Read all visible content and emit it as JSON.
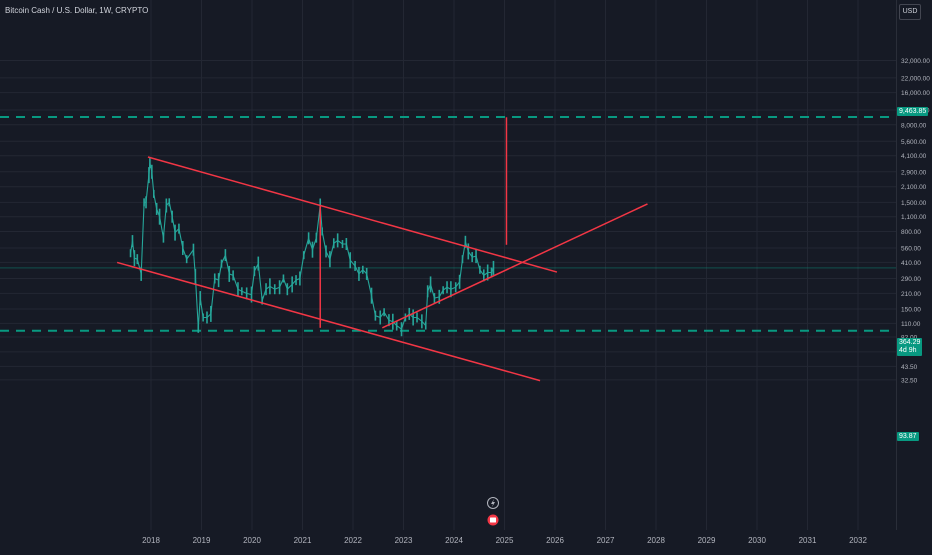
{
  "header": {
    "symbol_title": "Bitcoin Cash / U.S. Dollar, 1W, CRYPTO",
    "currency_badge": "USD"
  },
  "price_axis": {
    "scale": "log",
    "tick_labels": [
      "32,000.00",
      "22,000.00",
      "16,000.00",
      "11,000.00",
      "8,000.00",
      "5,600.00",
      "4,100.00",
      "2,900.00",
      "2,100.00",
      "1,500.00",
      "1,100.00",
      "800.00",
      "560.00",
      "410.00",
      "290.00",
      "210.00",
      "150.00",
      "110.00",
      "82.00",
      "59.50",
      "43.50",
      "32.50"
    ],
    "tick_values": [
      32000,
      22000,
      16000,
      11000,
      8000,
      5600,
      4100,
      2900,
      2100,
      1500,
      1100,
      800,
      560,
      410,
      290,
      210,
      150,
      110,
      82,
      59.5,
      43.5,
      32.5
    ],
    "upper_level_label": "9,463.85",
    "lower_level_label": "93.87",
    "last_price_label": "364.29",
    "countdown_label": "4d 9h"
  },
  "time_axis": {
    "labels": [
      "2018",
      "2019",
      "2020",
      "2021",
      "2022",
      "2023",
      "2024",
      "2025",
      "2026",
      "2027",
      "2028",
      "2029",
      "2030",
      "2031",
      "2032"
    ],
    "label_years": [
      2018,
      2019,
      2020,
      2021,
      2022,
      2023,
      2024,
      2025,
      2026,
      2027,
      2028,
      2029,
      2030,
      2031,
      2032
    ]
  },
  "colors": {
    "background": "#161a25",
    "candle": "#26a69a",
    "trendline": "#f23645",
    "level_line": "#089981",
    "grid": "#232733",
    "axis_text": "#b2b5be"
  },
  "icons": {
    "event_bolt": "lightning-bolt-icon",
    "event_earnings": "event-marker-icon"
  },
  "chart_data": {
    "type": "line",
    "title": "Bitcoin Cash / U.S. Dollar, 1W, CRYPTO",
    "x_unit": "date",
    "y_unit": "USD",
    "y_scale": "log",
    "ylim": [
      28,
      40000
    ],
    "xlim": [
      "2017-06-01",
      "2032-12-31"
    ],
    "grid": true,
    "series": [
      {
        "points": [
          [
            "2017-08-06",
            500
          ],
          [
            "2017-08-20",
            650
          ],
          [
            "2017-09-03",
            450
          ],
          [
            "2017-09-24",
            440
          ],
          [
            "2017-10-22",
            320
          ],
          [
            "2017-11-12",
            1500
          ],
          [
            "2017-11-26",
            1500
          ],
          [
            "2017-12-17",
            2700
          ],
          [
            "2017-12-24",
            3500
          ],
          [
            "2018-01-07",
            2900
          ],
          [
            "2018-01-21",
            1800
          ],
          [
            "2018-02-11",
            1300
          ],
          [
            "2018-03-04",
            1100
          ],
          [
            "2018-04-01",
            700
          ],
          [
            "2018-04-22",
            1400
          ],
          [
            "2018-05-13",
            1500
          ],
          [
            "2018-06-03",
            1100
          ],
          [
            "2018-06-24",
            780
          ],
          [
            "2018-07-22",
            850
          ],
          [
            "2018-08-19",
            560
          ],
          [
            "2018-09-16",
            440
          ],
          [
            "2018-11-04",
            540
          ],
          [
            "2018-11-18",
            300
          ],
          [
            "2018-12-09",
            100
          ],
          [
            "2018-12-23",
            190
          ],
          [
            "2019-01-13",
            125
          ],
          [
            "2019-02-10",
            125
          ],
          [
            "2019-03-10",
            135
          ],
          [
            "2019-04-07",
            290
          ],
          [
            "2019-05-05",
            280
          ],
          [
            "2019-05-26",
            400
          ],
          [
            "2019-06-23",
            480
          ],
          [
            "2019-07-21",
            320
          ],
          [
            "2019-08-18",
            310
          ],
          [
            "2019-09-22",
            230
          ],
          [
            "2019-10-20",
            220
          ],
          [
            "2019-11-24",
            210
          ],
          [
            "2019-12-29",
            205
          ],
          [
            "2020-01-19",
            340
          ],
          [
            "2020-02-16",
            400
          ],
          [
            "2020-03-15",
            180
          ],
          [
            "2020-04-12",
            230
          ],
          [
            "2020-05-10",
            245
          ],
          [
            "2020-06-14",
            230
          ],
          [
            "2020-07-19",
            240
          ],
          [
            "2020-08-16",
            290
          ],
          [
            "2020-09-13",
            230
          ],
          [
            "2020-10-18",
            255
          ],
          [
            "2020-11-15",
            280
          ],
          [
            "2020-12-13",
            290
          ],
          [
            "2021-01-10",
            480
          ],
          [
            "2021-02-14",
            690
          ],
          [
            "2021-03-14",
            540
          ],
          [
            "2021-04-11",
            700
          ],
          [
            "2021-05-09",
            1400
          ],
          [
            "2021-05-23",
            800
          ],
          [
            "2021-06-20",
            520
          ],
          [
            "2021-07-18",
            440
          ],
          [
            "2021-08-15",
            620
          ],
          [
            "2021-09-12",
            660
          ],
          [
            "2021-10-17",
            610
          ],
          [
            "2021-11-14",
            610
          ],
          [
            "2021-12-12",
            430
          ],
          [
            "2022-01-16",
            380
          ],
          [
            "2022-02-13",
            320
          ],
          [
            "2022-03-13",
            350
          ],
          [
            "2022-04-10",
            320
          ],
          [
            "2022-05-15",
            200
          ],
          [
            "2022-06-12",
            130
          ],
          [
            "2022-07-17",
            125
          ],
          [
            "2022-08-14",
            140
          ],
          [
            "2022-09-18",
            118
          ],
          [
            "2022-10-16",
            114
          ],
          [
            "2022-11-13",
            105
          ],
          [
            "2022-12-18",
            97
          ],
          [
            "2023-01-15",
            125
          ],
          [
            "2023-02-12",
            135
          ],
          [
            "2023-03-12",
            125
          ],
          [
            "2023-04-09",
            125
          ],
          [
            "2023-05-14",
            115
          ],
          [
            "2023-06-11",
            105
          ],
          [
            "2023-06-25",
            220
          ],
          [
            "2023-07-16",
            255
          ],
          [
            "2023-08-13",
            190
          ],
          [
            "2023-09-17",
            195
          ],
          [
            "2023-10-15",
            225
          ],
          [
            "2023-11-12",
            240
          ],
          [
            "2023-12-10",
            230
          ],
          [
            "2024-01-14",
            240
          ],
          [
            "2024-02-11",
            270
          ],
          [
            "2024-03-03",
            440
          ],
          [
            "2024-03-24",
            640
          ],
          [
            "2024-04-14",
            520
          ],
          [
            "2024-05-12",
            460
          ],
          [
            "2024-06-09",
            470
          ],
          [
            "2024-07-07",
            350
          ],
          [
            "2024-08-04",
            310
          ],
          [
            "2024-09-01",
            330
          ],
          [
            "2024-09-29",
            330
          ],
          [
            "2024-10-13",
            364.29
          ]
        ]
      }
    ],
    "horizontal_levels": [
      9463.85,
      93.87
    ],
    "last_price": 364.29,
    "trendlines": [
      {
        "from": [
          "2017-12-10",
          3990
        ],
        "to": [
          "2026-01-15",
          333
        ]
      },
      {
        "from": [
          "2017-05-01",
          410
        ],
        "to": [
          "2025-09-15",
          32
        ]
      },
      {
        "from": [
          "2022-08-01",
          100
        ],
        "to": [
          "2027-11-01",
          1450
        ]
      },
      {
        "from": [
          "2021-05-09",
          1390
        ],
        "to": [
          "2021-05-09",
          100
        ]
      },
      {
        "from": [
          "2025-01-15",
          9400
        ],
        "to": [
          "2025-01-15",
          600
        ]
      }
    ]
  }
}
